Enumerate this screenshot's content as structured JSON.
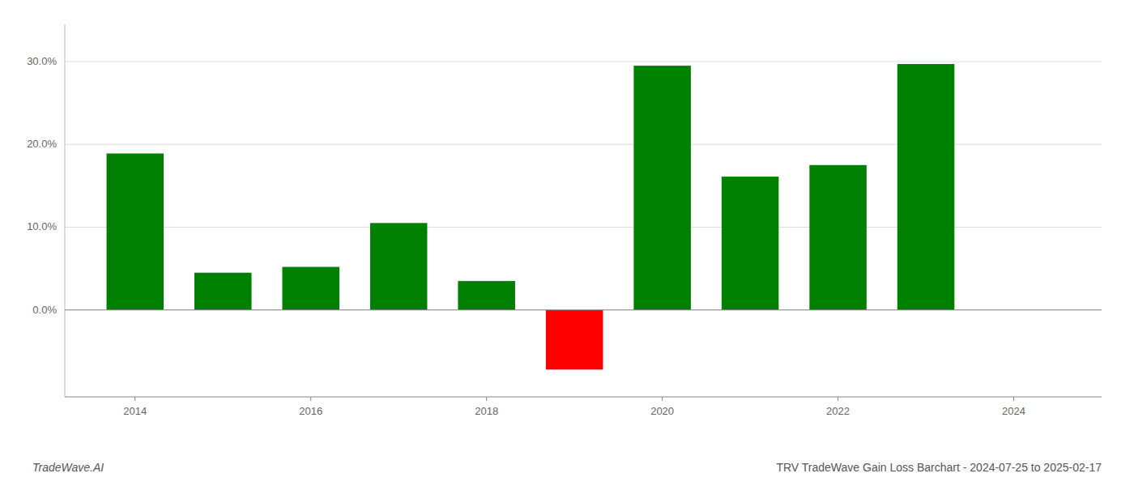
{
  "chart_data": {
    "type": "bar",
    "title": "TRV TradeWave Gain Loss Barchart - 2024-07-25 to 2025-02-17",
    "annotations": [
      "TradeWave.AI"
    ],
    "x": [
      2014,
      2015,
      2016,
      2017,
      2018,
      2019,
      2020,
      2021,
      2022,
      2023
    ],
    "values": [
      0.189,
      0.045,
      0.052,
      0.105,
      0.035,
      -0.072,
      0.295,
      0.161,
      0.175,
      0.297
    ],
    "colors": [
      "#008000",
      "#008000",
      "#008000",
      "#008000",
      "#008000",
      "#ff0000",
      "#008000",
      "#008000",
      "#008000",
      "#008000"
    ],
    "xlim": [
      2013.2,
      2025.0
    ],
    "xticks": [
      2014,
      2016,
      2018,
      2020,
      2022,
      2024
    ],
    "ylim": [
      -0.105,
      0.345
    ],
    "yticks": [
      {
        "value": 0.0,
        "label": "0.0%"
      },
      {
        "value": 0.1,
        "label": "10.0%"
      },
      {
        "value": 0.2,
        "label": "20.0%"
      },
      {
        "value": 0.3,
        "label": "30.0%"
      }
    ],
    "grid": true
  }
}
